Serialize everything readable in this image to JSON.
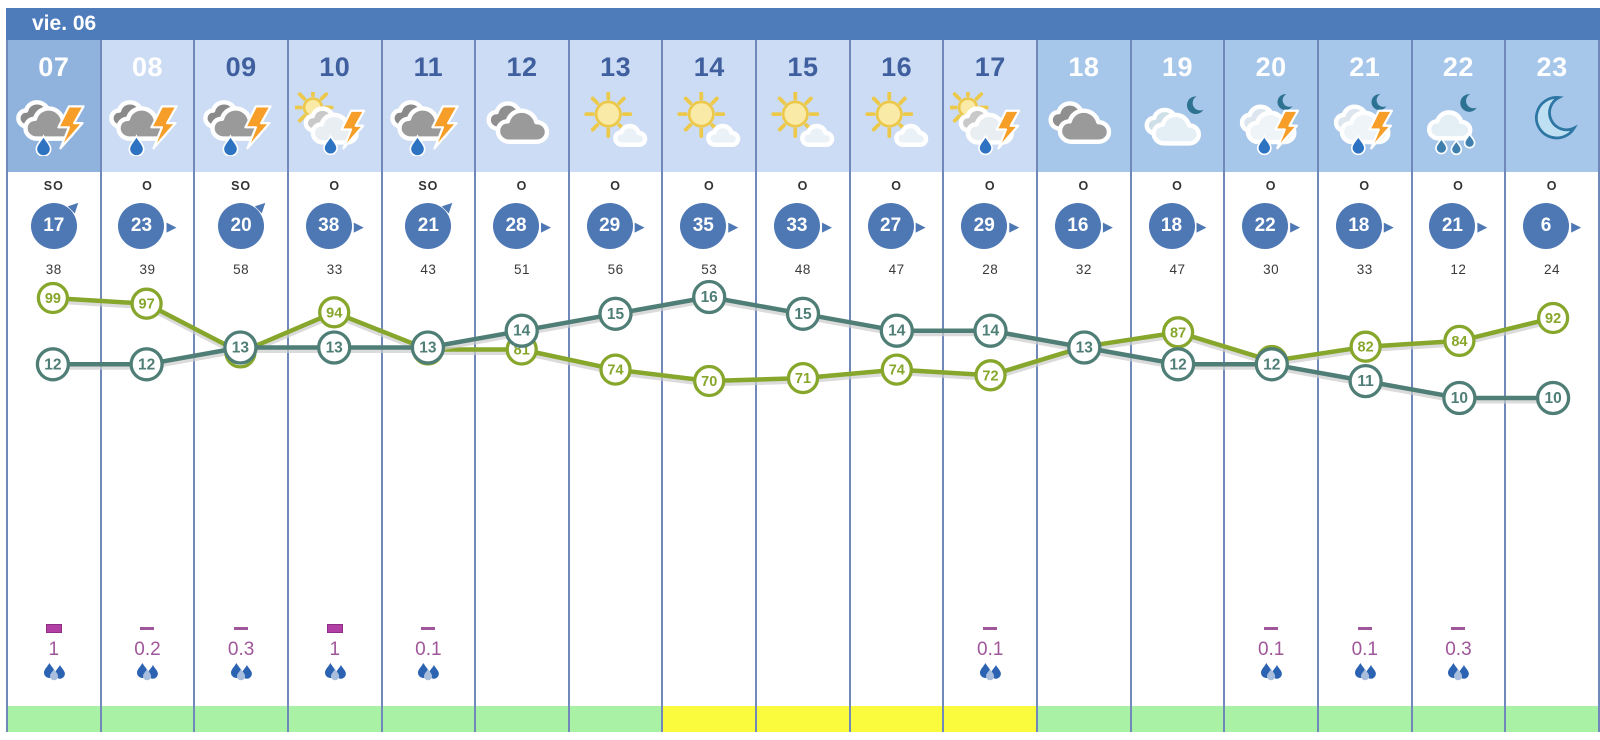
{
  "header": {
    "day_label": "vie. 06"
  },
  "colors": {
    "daybar": "#4e7cba",
    "border": "#7089ba",
    "wind_circle": "#4e78b4",
    "temp_line": "#4f7e76",
    "humidity_line": "#87a62c",
    "precip_text": "#a0569a",
    "strip_green": "#a9f1a4",
    "strip_yellow": "#fbfb3e",
    "hour_text_dark": "#3f5f9e",
    "hour_text_light": "#ffffff",
    "bg_current": "#8fb3dd",
    "bg_day": "#ccdcf4",
    "bg_night": "#a6c6ea"
  },
  "columns": [
    {
      "hour": "07",
      "bg": "#8fb3dd",
      "fg": "#ffffff",
      "icon": "storm-rain",
      "wind_dir": "SO",
      "wind_speed": "17",
      "wind_arrow": "ne",
      "gust": "38",
      "precip_marker": "block",
      "precip_value": "1",
      "strip": "green"
    },
    {
      "hour": "08",
      "bg": "#ccdcf4",
      "fg": "#ffffff",
      "icon": "storm-rain",
      "wind_dir": "O",
      "wind_speed": "23",
      "wind_arrow": "e",
      "gust": "39",
      "precip_marker": "dash",
      "precip_value": "0.2",
      "strip": "green"
    },
    {
      "hour": "09",
      "bg": "#ccdcf4",
      "fg": "#3f5f9e",
      "icon": "storm-rain",
      "wind_dir": "SO",
      "wind_speed": "20",
      "wind_arrow": "ne",
      "gust": "58",
      "precip_marker": "dash",
      "precip_value": "0.3",
      "strip": "green"
    },
    {
      "hour": "10",
      "bg": "#ccdcf4",
      "fg": "#3f5f9e",
      "icon": "sun-storm",
      "wind_dir": "O",
      "wind_speed": "38",
      "wind_arrow": "e",
      "gust": "33",
      "precip_marker": "block",
      "precip_value": "1",
      "strip": "green"
    },
    {
      "hour": "11",
      "bg": "#ccdcf4",
      "fg": "#3f5f9e",
      "icon": "storm-rain",
      "wind_dir": "SO",
      "wind_speed": "21",
      "wind_arrow": "ne",
      "gust": "43",
      "precip_marker": "dash",
      "precip_value": "0.1",
      "strip": "green"
    },
    {
      "hour": "12",
      "bg": "#ccdcf4",
      "fg": "#3f5f9e",
      "icon": "cloudy",
      "wind_dir": "O",
      "wind_speed": "28",
      "wind_arrow": "e",
      "gust": "51",
      "precip_marker": null,
      "precip_value": null,
      "strip": "green"
    },
    {
      "hour": "13",
      "bg": "#ccdcf4",
      "fg": "#3f5f9e",
      "icon": "sun-cloud",
      "wind_dir": "O",
      "wind_speed": "29",
      "wind_arrow": "e",
      "gust": "56",
      "precip_marker": null,
      "precip_value": null,
      "strip": "green"
    },
    {
      "hour": "14",
      "bg": "#ccdcf4",
      "fg": "#3f5f9e",
      "icon": "sun-cloud",
      "wind_dir": "O",
      "wind_speed": "35",
      "wind_arrow": "e",
      "gust": "53",
      "precip_marker": null,
      "precip_value": null,
      "strip": "yellow"
    },
    {
      "hour": "15",
      "bg": "#ccdcf4",
      "fg": "#3f5f9e",
      "icon": "sun-cloud",
      "wind_dir": "O",
      "wind_speed": "33",
      "wind_arrow": "e",
      "gust": "48",
      "precip_marker": null,
      "precip_value": null,
      "strip": "yellow"
    },
    {
      "hour": "16",
      "bg": "#ccdcf4",
      "fg": "#3f5f9e",
      "icon": "sun-cloud",
      "wind_dir": "O",
      "wind_speed": "27",
      "wind_arrow": "e",
      "gust": "47",
      "precip_marker": null,
      "precip_value": null,
      "strip": "yellow"
    },
    {
      "hour": "17",
      "bg": "#ccdcf4",
      "fg": "#3f5f9e",
      "icon": "sun-storm",
      "wind_dir": "O",
      "wind_speed": "29",
      "wind_arrow": "e",
      "gust": "28",
      "precip_marker": "dash",
      "precip_value": "0.1",
      "strip": "yellow"
    },
    {
      "hour": "18",
      "bg": "#a6c6ea",
      "fg": "#ffffff",
      "icon": "cloudy",
      "wind_dir": "O",
      "wind_speed": "16",
      "wind_arrow": "e",
      "gust": "32",
      "precip_marker": null,
      "precip_value": null,
      "strip": "green"
    },
    {
      "hour": "19",
      "bg": "#a6c6ea",
      "fg": "#ffffff",
      "icon": "night-cloud",
      "wind_dir": "O",
      "wind_speed": "18",
      "wind_arrow": "e",
      "gust": "47",
      "precip_marker": null,
      "precip_value": null,
      "strip": "green"
    },
    {
      "hour": "20",
      "bg": "#a6c6ea",
      "fg": "#ffffff",
      "icon": "night-storm",
      "wind_dir": "O",
      "wind_speed": "22",
      "wind_arrow": "e",
      "gust": "30",
      "precip_marker": "dash",
      "precip_value": "0.1",
      "strip": "green"
    },
    {
      "hour": "21",
      "bg": "#a6c6ea",
      "fg": "#ffffff",
      "icon": "night-storm",
      "wind_dir": "O",
      "wind_speed": "18",
      "wind_arrow": "e",
      "gust": "33",
      "precip_marker": "dash",
      "precip_value": "0.1",
      "strip": "green"
    },
    {
      "hour": "22",
      "bg": "#a6c6ea",
      "fg": "#ffffff",
      "icon": "night-rain",
      "wind_dir": "O",
      "wind_speed": "21",
      "wind_arrow": "e",
      "gust": "12",
      "precip_marker": "dash",
      "precip_value": "0.3",
      "strip": "green"
    },
    {
      "hour": "23",
      "bg": "#a6c6ea",
      "fg": "#ffffff",
      "icon": "clear-night",
      "wind_dir": "O",
      "wind_speed": "6",
      "wind_arrow": "e",
      "gust": "24",
      "precip_marker": null,
      "precip_value": null,
      "strip": "green"
    }
  ],
  "chart_data": {
    "type": "line",
    "categories": [
      "07",
      "08",
      "09",
      "10",
      "11",
      "12",
      "13",
      "14",
      "15",
      "16",
      "17",
      "18",
      "19",
      "20",
      "21",
      "22",
      "23"
    ],
    "series": [
      {
        "name": "temperature",
        "color": "#4f7e76",
        "values": [
          12,
          12,
          13,
          13,
          13,
          14,
          15,
          16,
          15,
          14,
          14,
          13,
          12,
          12,
          11,
          10,
          10
        ]
      },
      {
        "name": "humidity",
        "color": "#87a62c",
        "values": [
          99,
          97,
          80,
          94,
          81,
          81,
          74,
          70,
          71,
          74,
          72,
          82,
          87,
          77,
          82,
          84,
          92
        ]
      }
    ],
    "title": "",
    "xlabel": "",
    "ylabel": "",
    "legend": "none",
    "grid": "vertical-column-borders",
    "value_labels": "inside circular markers"
  }
}
